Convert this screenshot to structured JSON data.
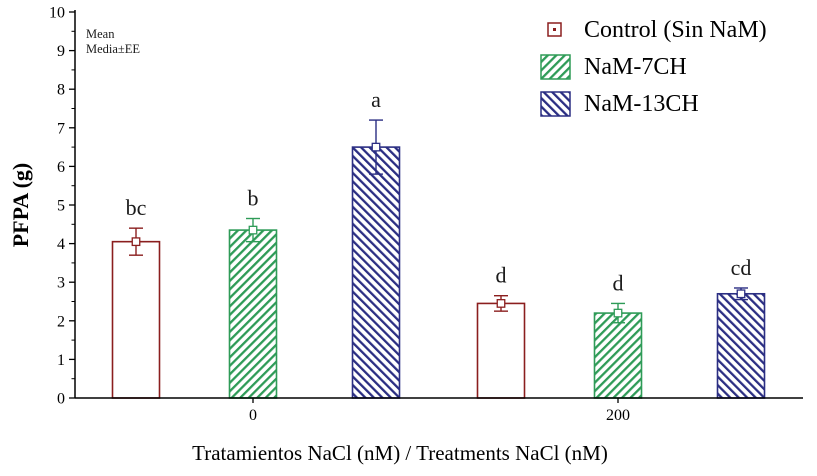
{
  "chart_data": {
    "type": "bar",
    "title": "",
    "xlabel": "Tratamientos NaCl (nM) / Treatments NaCl (nM)",
    "ylabel": "PFPA (g)",
    "annotation_lines": [
      "Mean",
      "Media±EE"
    ],
    "ylim": [
      0,
      10
    ],
    "ytick_step": 1,
    "yminor_step": 0.5,
    "grid": false,
    "legend_position": "top-right",
    "categories": [
      "0",
      "200"
    ],
    "series": [
      {
        "name": "Control (Sin NaM)",
        "color": "#8B1E1E",
        "hatch": "none",
        "values": [
          4.05,
          2.45
        ],
        "errors": [
          0.35,
          0.2
        ],
        "letters": [
          "bc",
          "d"
        ]
      },
      {
        "name": "NaM-7CH",
        "color": "#2E9B57",
        "hatch": "forward",
        "values": [
          4.35,
          2.2
        ],
        "errors": [
          0.3,
          0.25
        ],
        "letters": [
          "b",
          "d"
        ]
      },
      {
        "name": "NaM-13CH",
        "color": "#2B2E83",
        "hatch": "back",
        "values": [
          6.5,
          2.7
        ],
        "errors": [
          0.7,
          0.15
        ],
        "letters": [
          "a",
          "cd"
        ]
      }
    ]
  }
}
